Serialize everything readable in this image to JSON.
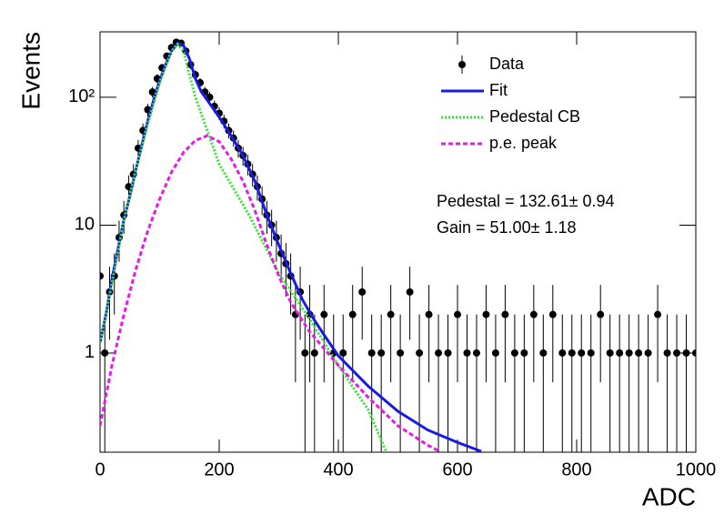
{
  "chart_data": {
    "type": "scatter",
    "x_label": "ADC",
    "y_label": "Events",
    "log_y": true,
    "xlim": [
      0,
      1000
    ],
    "xticks": [
      0,
      200,
      400,
      600,
      800,
      1000
    ],
    "ylim": [
      0.1675,
      325
    ],
    "yticks": [
      1,
      10,
      {
        "value": 100,
        "label": "10²"
      }
    ],
    "legend": "top-right",
    "annotations": [
      "Pedestal = 132.61± 0.94",
      "Gain = 51.00± 1.18"
    ],
    "series": [
      {
        "name": "Data",
        "type": "errorbar",
        "color": "#000000",
        "x": [
          0,
          8,
          16,
          24,
          32,
          40,
          48,
          56,
          64,
          72,
          80,
          88,
          96,
          104,
          112,
          120,
          128,
          136,
          144,
          152,
          160,
          168,
          176,
          184,
          192,
          200,
          208,
          216,
          224,
          232,
          240,
          248,
          256,
          264,
          272,
          280,
          288,
          296,
          304,
          312,
          320,
          328,
          336,
          344,
          352,
          360,
          376,
          392,
          408,
          424,
          440,
          456,
          472,
          488,
          504,
          520,
          536,
          552,
          568,
          584,
          600,
          616,
          632,
          648,
          664,
          680,
          696,
          712,
          728,
          744,
          760,
          776,
          792,
          808,
          824,
          840,
          856,
          872,
          888,
          904,
          920,
          936,
          952,
          968,
          984,
          1000
        ],
        "values": [
          4,
          1,
          3,
          4,
          8,
          12,
          20,
          25,
          40,
          55,
          80,
          110,
          140,
          170,
          210,
          245,
          270,
          265,
          230,
          180,
          150,
          130,
          110,
          100,
          85,
          75,
          65,
          55,
          48,
          40,
          35,
          30,
          25,
          20,
          16,
          12,
          10,
          8,
          6,
          5,
          4,
          2,
          3,
          1,
          2,
          1,
          2,
          1,
          1,
          2,
          3,
          1,
          1,
          2,
          1,
          3,
          1,
          2,
          1,
          1,
          2,
          1,
          1,
          2,
          1,
          2,
          1,
          1,
          2,
          1,
          2,
          1,
          1,
          1,
          1,
          2,
          1,
          1,
          1,
          1,
          1,
          2,
          1,
          1,
          1,
          1
        ],
        "errors": [
          2,
          1,
          1.73,
          2,
          2.83,
          3.46,
          4.47,
          5,
          6.32,
          7.42,
          8.94,
          10.49,
          11.83,
          13.04,
          14.49,
          15.65,
          16.43,
          16.28,
          15.17,
          13.42,
          12.25,
          11.4,
          10.49,
          10,
          9.22,
          8.66,
          8.06,
          7.42,
          6.93,
          6.32,
          5.92,
          5.48,
          5,
          4.47,
          4,
          3.46,
          3.16,
          2.83,
          2.45,
          2.24,
          2,
          1.41,
          1.73,
          1,
          1.41,
          1,
          1.41,
          1,
          1,
          1.41,
          1.73,
          1,
          1,
          1.41,
          1,
          1.73,
          1,
          1.41,
          1,
          1,
          1.41,
          1,
          1,
          1.41,
          1,
          1.41,
          1,
          1,
          1.41,
          1,
          1.41,
          1,
          1,
          1,
          1,
          1.41,
          1,
          1,
          1,
          1,
          1,
          1.41,
          1,
          1,
          1,
          1
        ]
      },
      {
        "name": "Fit",
        "type": "line",
        "dash": "solid",
        "color": "#1a1ae6",
        "x": [
          0,
          10,
          20,
          30,
          40,
          50,
          60,
          70,
          80,
          90,
          100,
          110,
          120,
          130,
          140,
          150,
          160,
          170,
          180,
          200,
          220,
          240,
          260,
          280,
          300,
          320,
          340,
          360,
          380,
          400,
          450,
          500,
          550,
          600,
          640
        ],
        "values": [
          1.2,
          2,
          3.8,
          6.5,
          11,
          17,
          27,
          42,
          65,
          95,
          135,
          180,
          230,
          265,
          255,
          200,
          140,
          110,
          95,
          70,
          50,
          35,
          22,
          12,
          7,
          4.2,
          2.6,
          1.8,
          1.3,
          0.95,
          0.55,
          0.35,
          0.25,
          0.2,
          0.17
        ]
      },
      {
        "name": "Pedestal CB",
        "type": "line",
        "dash": "dotted",
        "color": "#33e633",
        "x": [
          0,
          20,
          40,
          60,
          80,
          100,
          120,
          130,
          140,
          150,
          160,
          200,
          250,
          300,
          350,
          400,
          450,
          480
        ],
        "values": [
          1.2,
          3.5,
          11,
          27,
          62,
          130,
          230,
          260,
          230,
          150,
          100,
          30,
          12,
          4.2,
          1.9,
          0.8,
          0.36,
          0.17
        ]
      },
      {
        "name": "p.e. peak",
        "type": "line",
        "dash": "dashed",
        "color": "#e61ae6",
        "x": [
          0,
          20,
          40,
          60,
          80,
          100,
          120,
          140,
          160,
          180,
          200,
          220,
          240,
          260,
          280,
          300,
          320,
          350,
          400,
          450,
          500,
          550,
          570
        ],
        "values": [
          0.27,
          0.8,
          2,
          4.5,
          9,
          16,
          26,
          37,
          46,
          50,
          45,
          33,
          22,
          13,
          7,
          4,
          2.5,
          1.5,
          0.8,
          0.45,
          0.27,
          0.19,
          0.17
        ]
      }
    ]
  }
}
